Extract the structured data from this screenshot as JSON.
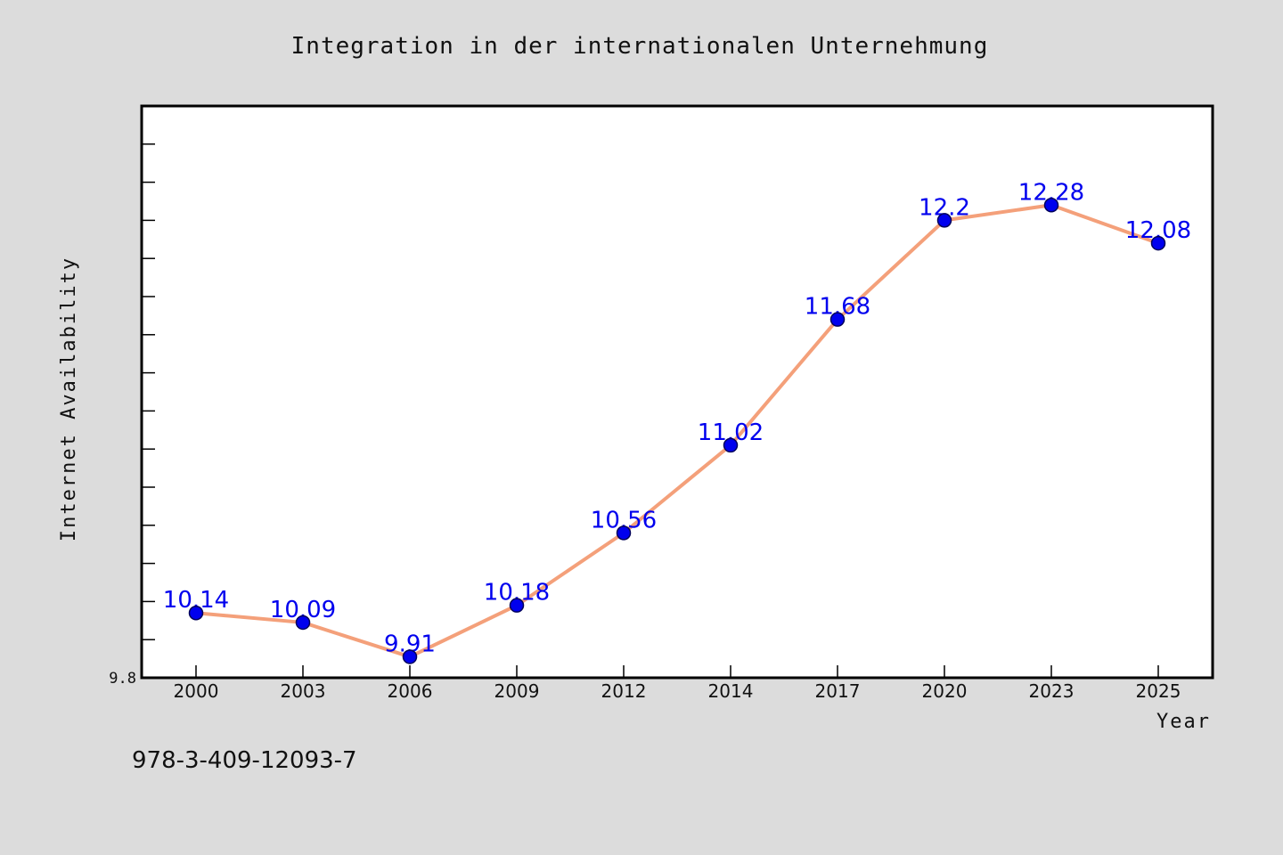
{
  "chart_data": {
    "type": "line",
    "title": "Integration in der internationalen Unternehmung",
    "xlabel": "Year",
    "ylabel": "Internet Availability",
    "categories": [
      "2000",
      "2003",
      "2006",
      "2009",
      "2012",
      "2014",
      "2017",
      "2020",
      "2023",
      "2025"
    ],
    "series": [
      {
        "values": [
          10.14,
          10.09,
          9.91,
          10.18,
          10.56,
          11.02,
          11.68,
          12.2,
          12.28,
          12.08
        ],
        "labels": [
          "10.14",
          "10.09",
          "9.91",
          "10.18",
          "10.56",
          "11.02",
          "11.68",
          "12.2",
          "12.28",
          "12.08"
        ],
        "line_color": "#f4a07a",
        "marker_color": "#0000ee"
      }
    ],
    "ylim": [
      9.8,
      12.8
    ],
    "y_tick_labels": [
      "9.8"
    ],
    "y_minor_tick_step": 0.2,
    "grid": false,
    "legend": "none"
  },
  "footnote": "978-3-409-12093-7",
  "colors": {
    "background": "#dcdcdc",
    "plot_background": "#ffffff",
    "frame": "#000000"
  }
}
